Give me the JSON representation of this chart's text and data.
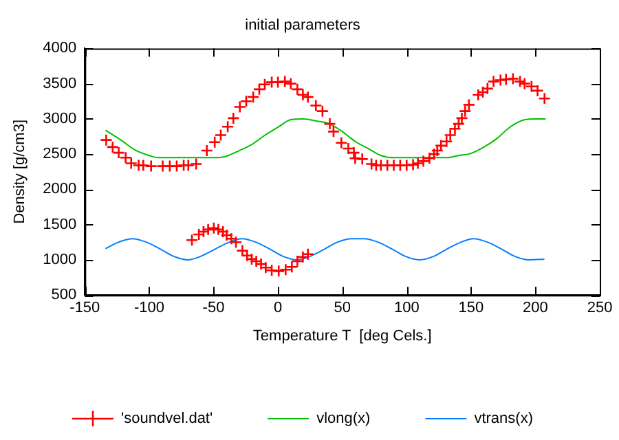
{
  "chart_data": {
    "type": "line",
    "title": "initial parameters",
    "xlabel": "Temperature T  [deg Cels.]",
    "ylabel": "Density [g/cm3]",
    "xlim": [
      -150,
      250
    ],
    "xticks": [
      -150,
      -100,
      -50,
      0,
      50,
      100,
      150,
      200,
      250
    ],
    "ylim": [
      500,
      4000
    ],
    "yticks": [
      500,
      1000,
      1500,
      2000,
      2500,
      3000,
      3500,
      4000
    ],
    "legend": "bottom",
    "series": [
      {
        "name": "'soundvel.dat'",
        "type": "scatter",
        "marker": "cross",
        "color": "#ff0000",
        "x": [
          -133.4,
          -128.4,
          -123.7,
          -118.3,
          -114,
          -108.2,
          -104.6,
          -98.5,
          -89.5,
          -84,
          -78.6,
          -73.2,
          -69.6,
          -63.5,
          -55.2,
          -49.1,
          -44.4,
          -39,
          -34.6,
          -29.6,
          -24.6,
          -19.2,
          -14.5,
          -10.2,
          -4.8,
          0,
          5.4,
          10,
          15.1,
          19.4,
          23.3,
          29.5,
          34.6,
          40.3,
          43.2,
          49.3,
          54.7,
          59,
          60,
          65.5,
          72.7,
          76.3,
          80,
          85,
          90,
          95,
          100,
          105,
          108.7,
          113,
          117.7,
          121.3,
          123.8,
          126.7,
          131,
          133.9,
          137.5,
          140.4,
          142.9,
          145.4,
          148.4,
          155.6,
          159.2,
          162.8,
          167.5,
          172.9,
          177.2,
          182.6,
          188.1,
          191.6,
          197,
          201.7,
          207.1,
          -66.8,
          -61.4,
          -57.8,
          -54.2,
          -49.8,
          -46.3,
          -42.7,
          -39.8,
          -36.2,
          -32.6,
          -27.6,
          -23.9,
          -20.4,
          -16.8,
          -13.1,
          -9.5,
          -4.8,
          0.6,
          6,
          10.8,
          15.1,
          19.4,
          23.3
        ],
        "values": [
          2700,
          2600,
          2520,
          2450,
          2370,
          2340,
          2340,
          2330,
          2330,
          2330,
          2330,
          2340,
          2340,
          2360,
          2550,
          2670,
          2770,
          2890,
          3010,
          3170,
          3250,
          3310,
          3420,
          3490,
          3520,
          3520,
          3530,
          3500,
          3420,
          3340,
          3310,
          3190,
          3110,
          2930,
          2820,
          2660,
          2580,
          2520,
          2440,
          2430,
          2360,
          2340,
          2340,
          2340,
          2340,
          2340,
          2340,
          2350,
          2370,
          2400,
          2440,
          2500,
          2550,
          2620,
          2680,
          2770,
          2860,
          2930,
          3010,
          3110,
          3200,
          3340,
          3380,
          3430,
          3530,
          3550,
          3560,
          3570,
          3530,
          3500,
          3460,
          3400,
          3290,
          1280,
          1360,
          1400,
          1430,
          1450,
          1430,
          1400,
          1350,
          1300,
          1250,
          1130,
          1060,
          1010,
          980,
          940,
          890,
          850,
          840,
          860,
          900,
          980,
          1040,
          1080
        ]
      },
      {
        "name": "vlong(x)",
        "type": "line",
        "marker": "none",
        "color": "#00c000",
        "x": [
          -134,
          -122,
          -111,
          -100,
          -93,
          -46,
          -40,
          -30,
          -20,
          -10,
          0,
          10,
          20,
          30,
          40,
          50,
          60,
          70,
          80,
          90,
          132,
          140,
          150,
          160,
          170,
          180,
          190,
          200,
          208
        ],
        "values": [
          2840,
          2700,
          2560,
          2480,
          2450,
          2450,
          2470,
          2550,
          2640,
          2770,
          2880,
          2990,
          3000,
          2970,
          2930,
          2820,
          2680,
          2580,
          2480,
          2450,
          2450,
          2480,
          2510,
          2600,
          2720,
          2880,
          2980,
          3000,
          3000
        ]
      },
      {
        "name": "vtrans(x)",
        "type": "line",
        "marker": "none",
        "color": "#0080ff",
        "x": [
          -134,
          -124,
          -113,
          -102,
          -91,
          -81,
          -70,
          -60,
          -49,
          -38,
          -28,
          -17,
          -6,
          4,
          15,
          25,
          36,
          46,
          57,
          67,
          78,
          89,
          99,
          110,
          121,
          131,
          142,
          152,
          163,
          174,
          184,
          195,
          207
        ],
        "values": [
          1160,
          1250,
          1300,
          1250,
          1150,
          1050,
          1000,
          1050,
          1150,
          1250,
          1300,
          1250,
          1150,
          1050,
          1000,
          1050,
          1150,
          1250,
          1300,
          1300,
          1250,
          1150,
          1050,
          1000,
          1050,
          1150,
          1250,
          1300,
          1250,
          1150,
          1050,
          1000,
          1010
        ]
      }
    ]
  }
}
